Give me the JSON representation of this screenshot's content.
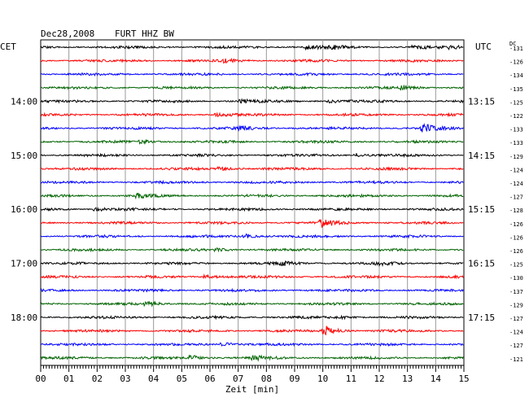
{
  "header": {
    "date": "Dec28,2008",
    "station": "FURT HHZ BW",
    "left_zone": "CET",
    "right_zone": "UTC",
    "dc_label": "DC"
  },
  "chart_data": {
    "type": "line",
    "title": "Dec28,2008   FURT HHZ BW",
    "xlabel": "Zeit [min]",
    "x_ticks": [
      "00",
      "01",
      "02",
      "03",
      "04",
      "05",
      "06",
      "07",
      "08",
      "09",
      "10",
      "11",
      "12",
      "13",
      "14",
      "15"
    ],
    "xlim": [
      0,
      15
    ],
    "grid": true,
    "trace_colors": [
      "#000000",
      "#ff0000",
      "#0000ff",
      "#006400"
    ],
    "cet_labels": [
      {
        "trace": 4,
        "text": "14:00"
      },
      {
        "trace": 8,
        "text": "15:00"
      },
      {
        "trace": 12,
        "text": "16:00"
      },
      {
        "trace": 16,
        "text": "17:00"
      },
      {
        "trace": 20,
        "text": "18:00"
      }
    ],
    "utc_labels": [
      {
        "trace": 4,
        "text": "13:15"
      },
      {
        "trace": 8,
        "text": "14:15"
      },
      {
        "trace": 12,
        "text": "15:15"
      },
      {
        "trace": 16,
        "text": "16:15"
      },
      {
        "trace": 20,
        "text": "17:15"
      }
    ],
    "dc_offsets": [
      -131,
      -126,
      -134,
      -135,
      -125,
      -122,
      -133,
      -133,
      -129,
      -124,
      -124,
      -127,
      -128,
      -126,
      -126,
      -126,
      -125,
      -130,
      -137,
      -129,
      -127,
      -124,
      -127,
      -121
    ],
    "events": [
      {
        "trace": 0,
        "t": 9.5,
        "amp": 2.2
      },
      {
        "trace": 0,
        "t": 10.3,
        "amp": 1.8
      },
      {
        "trace": 0,
        "t": 13.3,
        "amp": 1.8
      },
      {
        "trace": 0,
        "t": 14.6,
        "amp": 1.8
      },
      {
        "trace": 1,
        "t": 6.6,
        "amp": 2.0
      },
      {
        "trace": 3,
        "t": 12.8,
        "amp": 2.4
      },
      {
        "trace": 4,
        "t": 7.1,
        "amp": 2.0
      },
      {
        "trace": 4,
        "t": 10.3,
        "amp": 2.2
      },
      {
        "trace": 5,
        "t": 6.3,
        "amp": 1.6
      },
      {
        "trace": 6,
        "t": 7.1,
        "amp": 2.0
      },
      {
        "trace": 6,
        "t": 13.6,
        "amp": 4.5
      },
      {
        "trace": 7,
        "t": 3.6,
        "amp": 1.8
      },
      {
        "trace": 8,
        "t": 11.2,
        "amp": 2.0
      },
      {
        "trace": 9,
        "t": 6.4,
        "amp": 2.0
      },
      {
        "trace": 11,
        "t": 3.5,
        "amp": 2.4
      },
      {
        "trace": 12,
        "t": 2.0,
        "amp": 1.7
      },
      {
        "trace": 13,
        "t": 10.0,
        "amp": 5.0
      },
      {
        "trace": 14,
        "t": 7.3,
        "amp": 2.6
      },
      {
        "trace": 15,
        "t": 6.3,
        "amp": 1.6
      },
      {
        "trace": 16,
        "t": 8.6,
        "amp": 2.0
      },
      {
        "trace": 16,
        "t": 12.0,
        "amp": 1.6
      },
      {
        "trace": 17,
        "t": 5.9,
        "amp": 2.4
      },
      {
        "trace": 19,
        "t": 3.8,
        "amp": 2.4
      },
      {
        "trace": 20,
        "t": 10.6,
        "amp": 1.6
      },
      {
        "trace": 21,
        "t": 10.1,
        "amp": 5.5
      },
      {
        "trace": 22,
        "t": 6.5,
        "amp": 2.0
      },
      {
        "trace": 23,
        "t": 5.4,
        "amp": 2.6
      },
      {
        "trace": 23,
        "t": 7.6,
        "amp": 2.2
      }
    ]
  }
}
